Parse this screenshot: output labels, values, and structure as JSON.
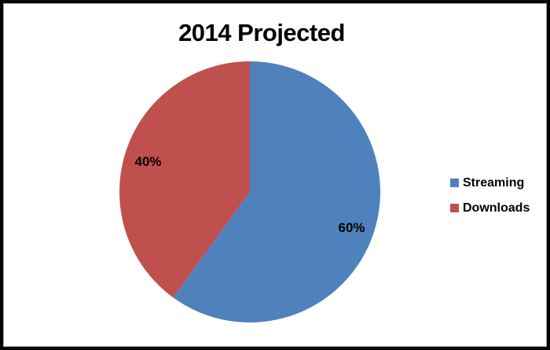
{
  "chart_data": {
    "type": "pie",
    "title": "2014 Projected",
    "categories": [
      "Streaming",
      "Downloads"
    ],
    "values": [
      60,
      40
    ],
    "point_labels": [
      "60%",
      "40%"
    ],
    "slice_colors": [
      "#4F81BD",
      "#C0504D"
    ],
    "start_angle_deg": 0,
    "direction": "clockwise",
    "data_label_position": "inside-end",
    "legend_position": "right"
  },
  "legend": {
    "items": [
      {
        "label": "Streaming",
        "color": "#4F81BD"
      },
      {
        "label": "Downloads",
        "color": "#C0504D"
      }
    ]
  },
  "frame": {
    "outer_border_color": "#060606",
    "inner_border_color": "#A6A6A6",
    "background_color": "#FFFFFF",
    "text_color": "#000000"
  }
}
